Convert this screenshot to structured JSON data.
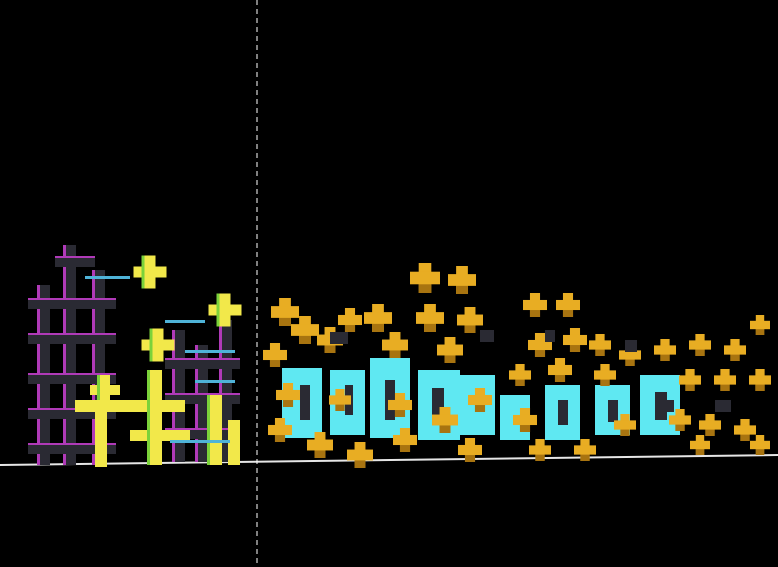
{
  "viewport": {
    "background": "#000000",
    "ground_line_color": "#e6e6e6",
    "divider_color": "#ffffff",
    "divider_style": "dashed"
  },
  "palette": {
    "dark_block": "#2a2a33",
    "magenta_edge": "#b03ab8",
    "yellow_block": "#f2e84a",
    "green_edge": "#7bd23a",
    "cyan_edge": "#4fb3d8",
    "gold_block": "#e8ad23",
    "gold_shadow": "#a87410",
    "cyan_fill": "#5fe8f2"
  }
}
